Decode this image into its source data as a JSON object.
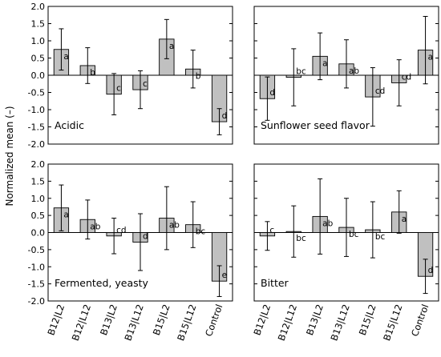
{
  "chart_data": {
    "type": "bar",
    "ylabel": "Normalized mean (–)",
    "categories": [
      "B12|L2",
      "B12|L12",
      "B13|L2",
      "B13|L12",
      "B15|L2",
      "B15|L12",
      "Control"
    ],
    "ylim": [
      -2.0,
      2.0
    ],
    "yticks": [
      "2.0",
      "1.5",
      "1.0",
      "0.5",
      "0.0",
      "-0.5",
      "-1.0",
      "-1.5",
      "-2.0"
    ],
    "bar_color": "#c0c0c0",
    "layout": "2x2 grid",
    "panels": [
      {
        "label": "Acidic",
        "values": [
          0.75,
          0.28,
          -0.55,
          -0.42,
          1.05,
          0.18,
          -1.35
        ],
        "error": [
          0.6,
          0.52,
          0.6,
          0.55,
          0.57,
          0.55,
          0.38
        ],
        "significance": [
          "a",
          "b",
          "c",
          "c",
          "a",
          "b",
          "d"
        ]
      },
      {
        "label": "Sunflower seed flavor",
        "values": [
          -0.68,
          -0.06,
          0.55,
          0.33,
          -0.63,
          -0.22,
          0.73
        ],
        "error": [
          0.63,
          0.83,
          0.68,
          0.7,
          0.85,
          0.67,
          0.98
        ],
        "significance": [
          "d",
          "bc",
          "a",
          "ab",
          "cd",
          "cd",
          "a"
        ]
      },
      {
        "label": "Fermented, yeasty",
        "values": [
          0.72,
          0.38,
          -0.1,
          -0.28,
          0.42,
          0.23,
          -1.42
        ],
        "error": [
          0.67,
          0.57,
          0.52,
          0.83,
          0.92,
          0.67,
          0.45
        ],
        "significance": [
          "a",
          "ab",
          "cd",
          "d",
          "ab",
          "bc",
          "e"
        ]
      },
      {
        "label": "Bitter",
        "values": [
          -0.1,
          0.03,
          0.47,
          0.15,
          0.08,
          0.6,
          -1.28
        ],
        "error": [
          0.42,
          0.75,
          1.1,
          0.85,
          0.82,
          0.62,
          0.5
        ],
        "significance": [
          "c",
          "bc",
          "ab",
          "bc",
          "bc",
          "a",
          "d"
        ]
      }
    ]
  }
}
